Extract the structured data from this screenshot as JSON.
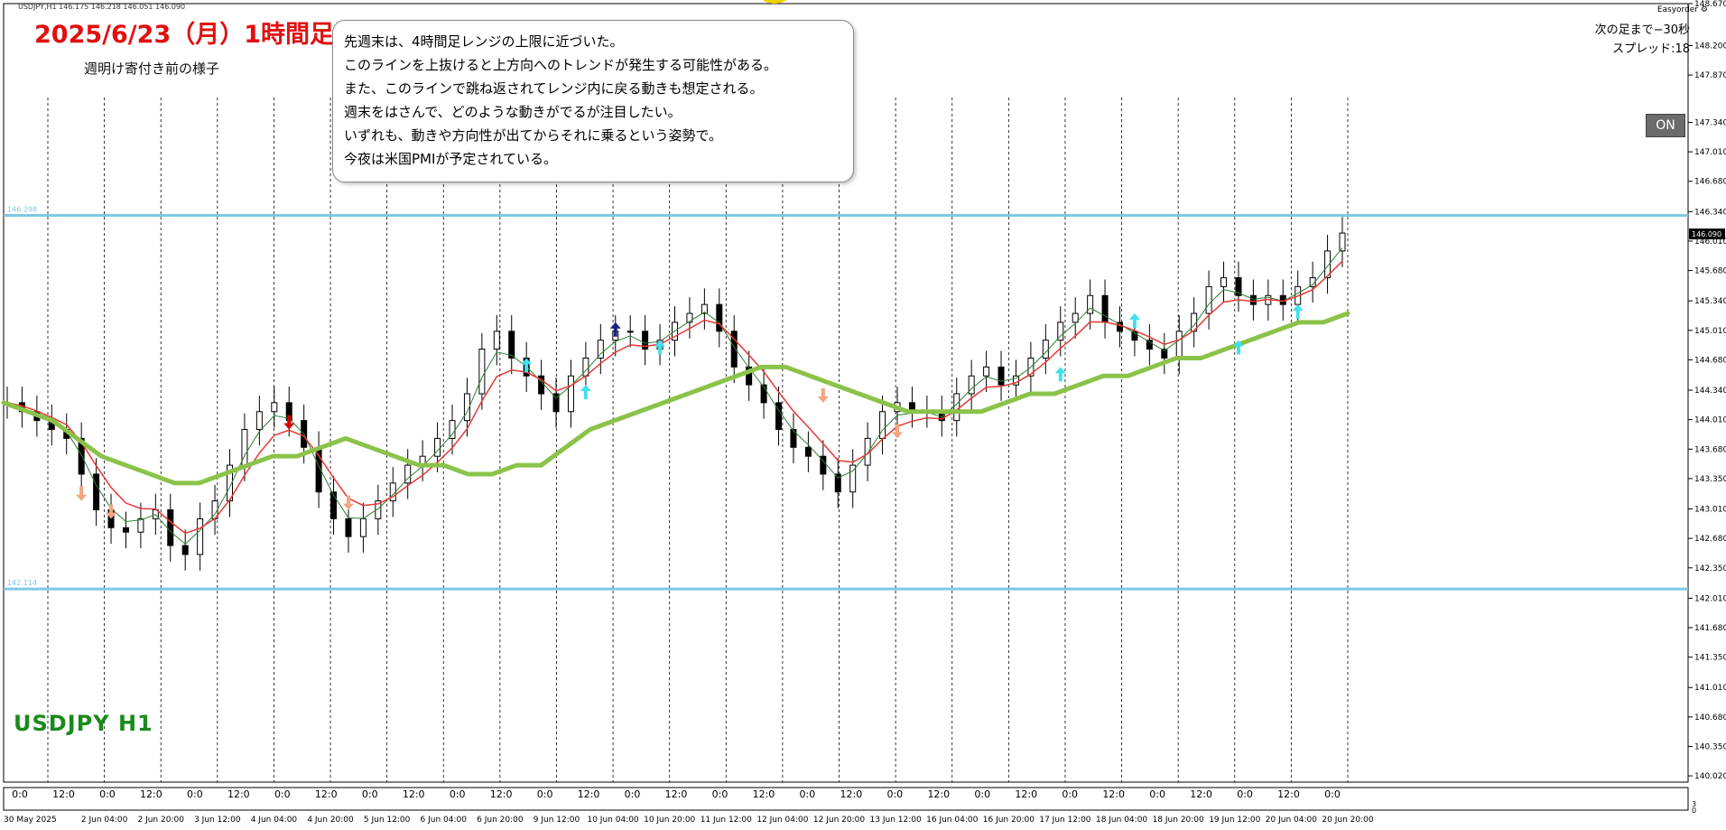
{
  "window": {
    "header_text": "USDJPY,H1  146.175 146.218 146.051 146.090",
    "easyorder_label": "Easyorder"
  },
  "annotation": {
    "title": "2025/6/23（月）1時間足",
    "subtitle": "週明け寄付き前の様子",
    "lines": [
      "先週末は、4時間足レンジの上限に近づいた。",
      "このラインを上抜けると上方向へのトレンドが発生する可能性がある。",
      "また、このラインで跳ね返されてレンジ内に戻る動きも想定される。",
      "週末をはさんで、どのような動きがでるが注目したい。",
      "いずれも、動きや方向性が出てからそれに乗るという姿勢で。",
      "今夜は米国PMIが予定されている。"
    ],
    "symbol_label": "USDJPY H1"
  },
  "side_panel": {
    "next_bar": "次の足まで−30秒",
    "spread": "スプレッド:18",
    "on_button": "ON"
  },
  "colors": {
    "level_line": "#7ec8e3",
    "ma_long": "#8bc34a",
    "ma_fast": "#e53935",
    "ma_mid": "#2e7d32",
    "candle": "#000000",
    "arrow_up": "#40e0f0",
    "arrow_down": "#f4a582",
    "arrow_up_strong": "#1a237e",
    "arrow_down_strong": "#d50000",
    "current_price_bg": "#000000"
  },
  "chart_data": {
    "type": "line",
    "symbol": "USDJPY",
    "timeframe": "H1",
    "ylim": [
      139.95,
      148.67
    ],
    "y_ticks": [
      148.67,
      148.2,
      147.87,
      147.34,
      147.01,
      146.68,
      146.34,
      146.01,
      145.68,
      145.34,
      145.01,
      144.68,
      144.34,
      144.01,
      143.68,
      143.35,
      143.01,
      142.68,
      142.35,
      142.01,
      141.68,
      141.35,
      141.01,
      140.68,
      140.35,
      140.02
    ],
    "y_tick_labels": [
      "148.670",
      "148.200",
      "147.870",
      "147.340",
      "147.010",
      "146.680",
      "146.340",
      "146.010",
      "145.680",
      "145.340",
      "145.010",
      "144.680",
      "144.340",
      "144.010",
      "143.680",
      "143.350",
      "143.010",
      "142.680",
      "142.350",
      "142.010",
      "141.680",
      "141.350",
      "141.010",
      "140.680",
      "140.350",
      "140.020"
    ],
    "current_price": 146.09,
    "current_price_label": "146.090",
    "levels": [
      {
        "label": "146.298",
        "price": 146.298
      },
      {
        "label": "142.114",
        "price": 142.114
      }
    ],
    "x_date_labels": [
      "30 May 2025",
      "2 Jun 04:00",
      "2 Jun 20:00",
      "3 Jun 12:00",
      "4 Jun 04:00",
      "4 Jun 20:00",
      "5 Jun 12:00",
      "6 Jun 04:00",
      "6 Jun 20:00",
      "9 Jun 12:00",
      "10 Jun 04:00",
      "10 Jun 20:00",
      "11 Jun 12:00",
      "12 Jun 04:00",
      "12 Jun 20:00",
      "13 Jun 12:00",
      "16 Jun 04:00",
      "16 Jun 20:00",
      "17 Jun 12:00",
      "18 Jun 04:00",
      "18 Jun 20:00",
      "19 Jun 12:00",
      "20 Jun 04:00",
      "20 Jun 20:00"
    ],
    "sub_labels": [
      "0:0",
      "12:0",
      "0:0",
      "12:0",
      "0:0",
      "12:0",
      "0:0",
      "12:0",
      "0:0",
      "12:0",
      "0:0",
      "12:0",
      "0:0",
      "12:0",
      "0:0",
      "12:0",
      "0:0",
      "12:0",
      "0:0",
      "12:0",
      "0:0",
      "12:0",
      "0:0",
      "12:0",
      "0:0",
      "12:0",
      "0:0",
      "12:0",
      "0:0",
      "12:0",
      "0:0"
    ],
    "sub_axis_ticks": [
      "3",
      "0"
    ],
    "series": [
      {
        "values": [
          144.2,
          144.1,
          144.0,
          143.9,
          143.8,
          143.4,
          143.0,
          142.8,
          142.75,
          142.9,
          143.0,
          142.6,
          142.5,
          142.9,
          143.1,
          143.5,
          143.9,
          144.1,
          144.2,
          144.0,
          143.7,
          143.2,
          142.9,
          142.7,
          142.9,
          143.1,
          143.3,
          143.5,
          143.6,
          143.8,
          144.0,
          144.3,
          144.8,
          145.0,
          144.7,
          144.5,
          144.3,
          144.1,
          144.5,
          144.7,
          144.9,
          145.0,
          145.0,
          144.8,
          144.9,
          145.1,
          145.2,
          145.3,
          145.0,
          144.6,
          144.4,
          144.2,
          143.9,
          143.7,
          143.6,
          143.4,
          143.2,
          143.5,
          143.8,
          144.1,
          144.2,
          144.1,
          144.1,
          144.0,
          144.3,
          144.5,
          144.6,
          144.4,
          144.5,
          144.7,
          144.9,
          145.1,
          145.2,
          145.4,
          145.1,
          145.0,
          144.9,
          144.8,
          144.7,
          145.0,
          145.2,
          145.5,
          145.6,
          145.4,
          145.3,
          145.4,
          145.3,
          145.5,
          145.6,
          145.9,
          146.1
        ]
      },
      {
        "values": [
          144.2,
          144.1,
          144.0,
          143.8,
          143.6,
          143.5,
          143.4,
          143.3,
          143.3,
          143.4,
          143.5,
          143.6,
          143.6,
          143.7,
          143.8,
          143.7,
          143.6,
          143.5,
          143.5,
          143.4,
          143.4,
          143.5,
          143.5,
          143.7,
          143.9,
          144.0,
          144.1,
          144.2,
          144.3,
          144.4,
          144.5,
          144.6,
          144.6,
          144.5,
          144.4,
          144.3,
          144.2,
          144.1,
          144.1,
          144.1,
          144.1,
          144.2,
          144.3,
          144.3,
          144.4,
          144.5,
          144.5,
          144.6,
          144.7,
          144.7,
          144.8,
          144.9,
          145.0,
          145.1,
          145.1,
          145.2
        ]
      }
    ],
    "signal_arrows": [
      {
        "dir": "down",
        "strong": false,
        "idx": 5,
        "price": 143.2
      },
      {
        "dir": "down",
        "strong": false,
        "idx": 7,
        "price": 143.0
      },
      {
        "dir": "down",
        "strong": true,
        "idx": 19,
        "price": 144.0
      },
      {
        "dir": "down",
        "strong": false,
        "idx": 23,
        "price": 143.1
      },
      {
        "dir": "up",
        "strong": false,
        "idx": 35,
        "price": 144.6
      },
      {
        "dir": "up",
        "strong": false,
        "idx": 39,
        "price": 144.3
      },
      {
        "dir": "up",
        "strong": true,
        "idx": 41,
        "price": 145.0
      },
      {
        "dir": "up",
        "strong": false,
        "idx": 44,
        "price": 144.8
      },
      {
        "dir": "down",
        "strong": false,
        "idx": 55,
        "price": 144.3
      },
      {
        "dir": "down",
        "strong": false,
        "idx": 60,
        "price": 143.9
      },
      {
        "dir": "up",
        "strong": false,
        "idx": 71,
        "price": 144.5
      },
      {
        "dir": "up",
        "strong": false,
        "idx": 76,
        "price": 145.1
      },
      {
        "dir": "up",
        "strong": false,
        "idx": 83,
        "price": 144.8
      },
      {
        "dir": "up",
        "strong": false,
        "idx": 87,
        "price": 145.2
      }
    ]
  }
}
